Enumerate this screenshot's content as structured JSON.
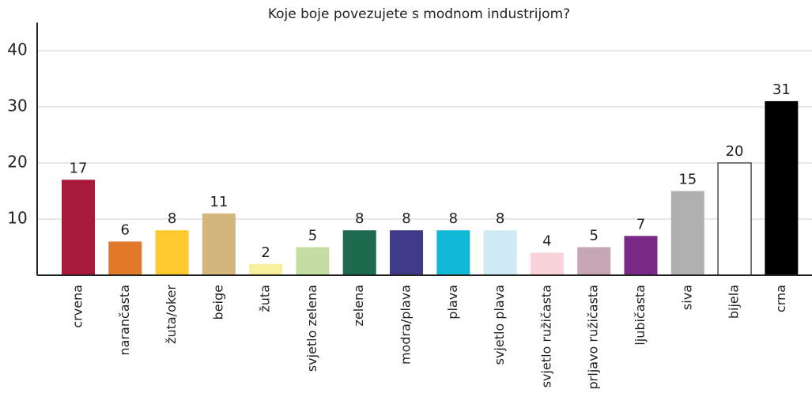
{
  "chart_data": {
    "type": "bar",
    "title": "Koje boje povezujete s modnom industrijom?",
    "categories": [
      "crvena",
      "narančasta",
      "žuta/oker",
      "beige",
      "žuta",
      "svjetlo zelena",
      "zelena",
      "modra/plava",
      "plava",
      "svjetlo plava",
      "svjetlo ružičasta",
      "prljavo ružičasta",
      "ljubičasta",
      "siva",
      "bijela",
      "crna"
    ],
    "values": [
      17,
      6,
      8,
      11,
      2,
      5,
      8,
      8,
      8,
      8,
      4,
      5,
      7,
      15,
      20,
      31
    ],
    "colors": [
      "#a8193a",
      "#e07a2a",
      "#fdc92f",
      "#d6b67f",
      "#f7ef9b",
      "#c3dea0",
      "#1e6a4f",
      "#3f3a8a",
      "#11b8d6",
      "#cfe9f5",
      "#f8d3da",
      "#c6a6b2",
      "#7a2a86",
      "#b0b0b0",
      "#ffffff",
      "#000000"
    ],
    "ylim": [
      0,
      45
    ],
    "yticks": [
      10,
      20,
      30,
      40
    ],
    "grid": true
  }
}
